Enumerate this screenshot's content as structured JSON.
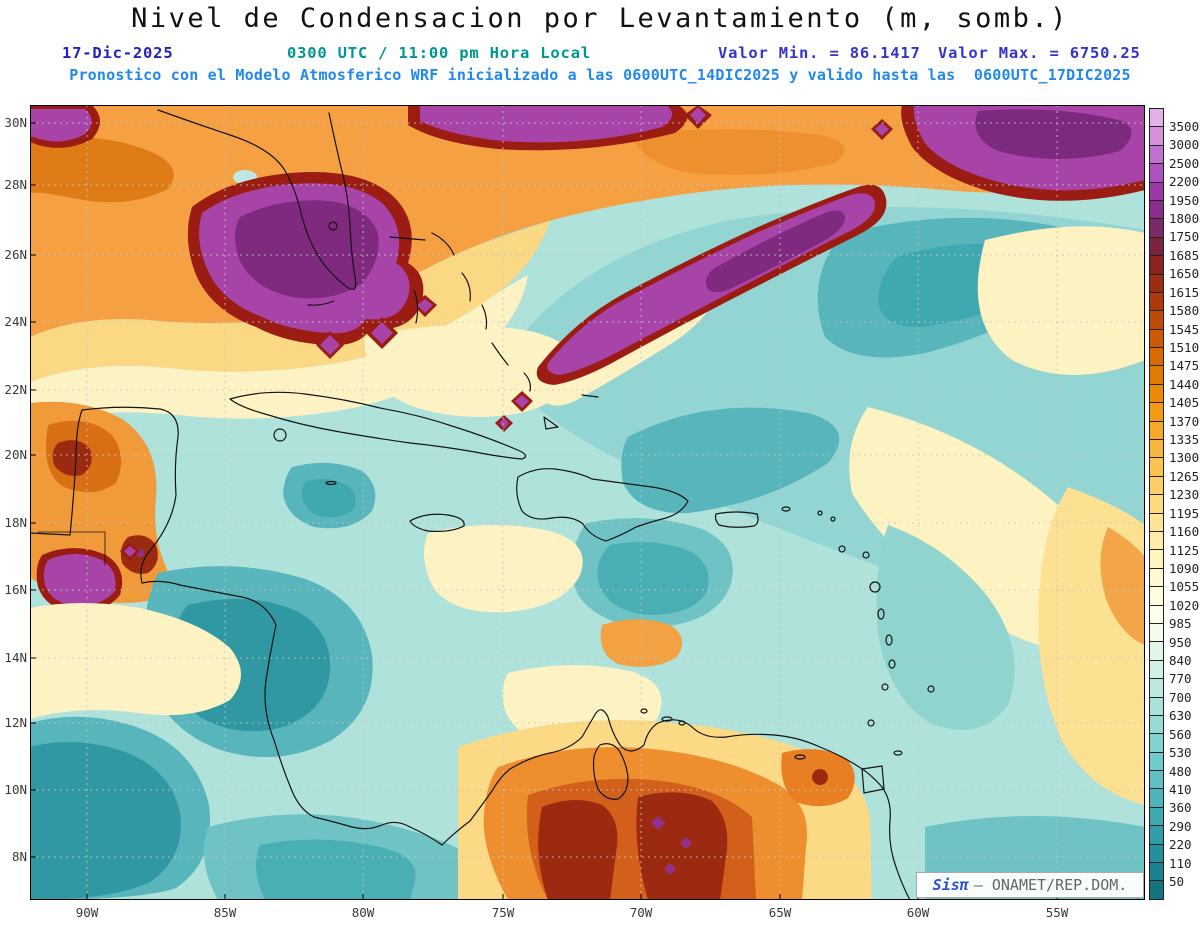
{
  "title": "Nivel de Condensacion por Levantamiento (m, somb.)",
  "header": {
    "date": "17-Dic-2025",
    "time": "0300 UTC / 11:00 pm Hora Local",
    "min": "Valor Min. = 86.1417",
    "max": "Valor Max. = 6750.25",
    "forecast": "Pronostico con el Modelo Atmosferico WRF inicializado a las 0600UTC_14DIC2025 y valido hasta las  0600UTC_17DIC2025"
  },
  "map": {
    "lat_ticks": [
      "30N",
      "28N",
      "26N",
      "24N",
      "22N",
      "20N",
      "18N",
      "16N",
      "14N",
      "12N",
      "10N",
      "8N"
    ],
    "lon_ticks": [
      "90W",
      "85W",
      "80W",
      "75W",
      "70W",
      "65W",
      "60W",
      "55W"
    ]
  },
  "credit": {
    "brand": "Sisπ",
    "org": "– ONAMET/REP.DOM."
  },
  "chart_data": {
    "type": "heatmap",
    "title": "Nivel de Condensacion por Levantamiento (m, somb.)",
    "units": "m",
    "value_min": 86.1417,
    "value_max": 6750.25,
    "model": "WRF",
    "init_time": "0600UTC_14DIC2025",
    "valid_until": "0600UTC_17DIC2025",
    "valid_time": "17-Dic-2025 0300 UTC / 11:00 pm Hora Local",
    "lat_ticks": [
      "30N",
      "28N",
      "26N",
      "24N",
      "22N",
      "20N",
      "18N",
      "16N",
      "14N",
      "12N",
      "10N",
      "8N"
    ],
    "lon_ticks": [
      "90W",
      "85W",
      "80W",
      "75W",
      "70W",
      "65W",
      "60W",
      "55W"
    ],
    "levels": [
      3500,
      3000,
      2500,
      2200,
      1950,
      1800,
      1750,
      1685,
      1650,
      1615,
      1580,
      1545,
      1510,
      1475,
      1440,
      1405,
      1370,
      1335,
      1300,
      1265,
      1230,
      1195,
      1160,
      1125,
      1090,
      1055,
      1020,
      985,
      950,
      840,
      770,
      700,
      630,
      560,
      530,
      480,
      410,
      360,
      290,
      220,
      110,
      50
    ],
    "palette": [
      "#e2b1e6",
      "#d392da",
      "#c172cf",
      "#ae52c0",
      "#9a3aa9",
      "#872f8b",
      "#7a2a66",
      "#7c243e",
      "#8a2420",
      "#9b2d12",
      "#ad3a0a",
      "#bd4a05",
      "#cc5a02",
      "#d96a00",
      "#e37a00",
      "#ec8a06",
      "#f29a14",
      "#f7a827",
      "#f9b63c",
      "#fbc351",
      "#fccf67",
      "#fdda7e",
      "#fee494",
      "#feecaa",
      "#fff3bf",
      "#fff8d2",
      "#fffce2",
      "#fdfeec",
      "#f2fbec",
      "#e2f6e8",
      "#cff0e3",
      "#bce9df",
      "#a9e2da",
      "#96dad5",
      "#83d2d0",
      "#70c9ca",
      "#5fbfc3",
      "#4eb4bb",
      "#3fa9b2",
      "#319da8",
      "#25909d",
      "#1b8290",
      "#127382"
    ],
    "legend_position": "right",
    "grid": true
  }
}
